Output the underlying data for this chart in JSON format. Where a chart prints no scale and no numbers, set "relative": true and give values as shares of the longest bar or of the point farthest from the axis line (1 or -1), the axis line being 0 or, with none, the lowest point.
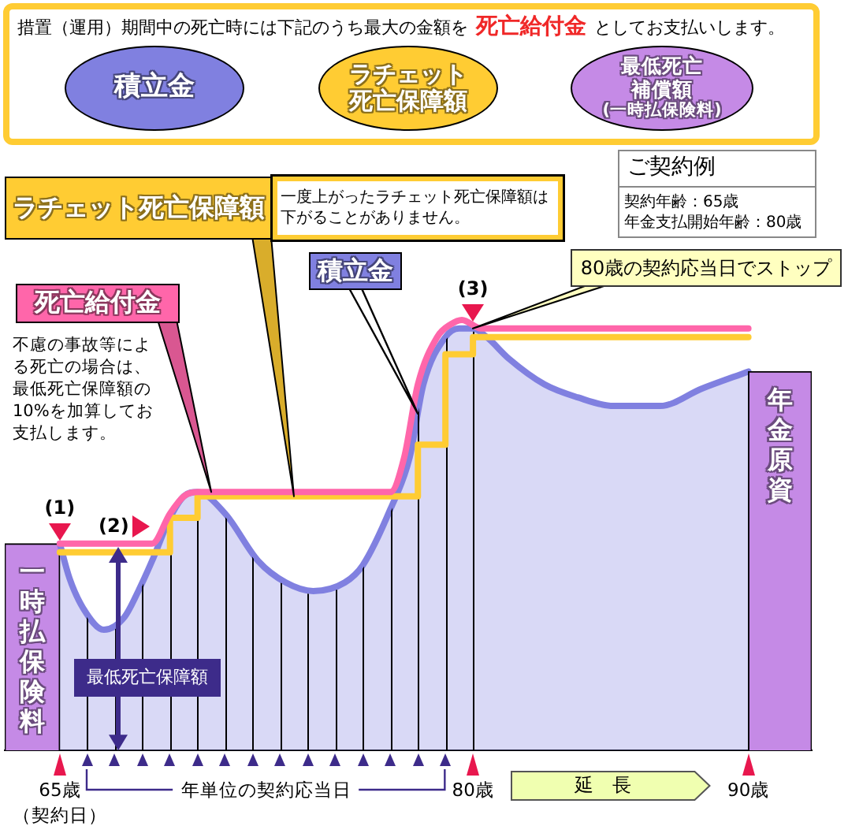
{
  "chart_data": {
    "type": "line",
    "relative": true,
    "annotations": [
      "措置（運用）期間中の死亡時には下記のうち最大の金額を",
      "死亡給付金",
      "としてお支払いします。",
      "積立金",
      "ラチェット死亡保障額",
      "最低死亡補償額",
      "(一時払保険料)",
      "一度上がったラチェット死亡保障額は下がることがありません。",
      "不慮の事故等による死亡の場合は、最低死亡保障額の10%を加算してお支払します。",
      "ご契約例",
      "契約年齢：65歳",
      "年金支払開始年齢：80歳",
      {
        "text": "(1)",
        "x": 65,
        "y": 0.48
      },
      {
        "text": "(2)",
        "x": 68.6,
        "y": 0.52
      },
      {
        "text": "(3)",
        "x": 80,
        "y": 0.99
      },
      {
        "text": "80歳の契約応当日でストップ",
        "x": 80,
        "y": 0.98
      },
      "最低死亡保障額",
      "年単位の契約応当日",
      "延　長",
      "（契約日）"
    ],
    "xlim": [
      63,
      92.3
    ],
    "xticks": [
      {
        "value": 65,
        "label": "65歳"
      },
      {
        "value": 66,
        "label": null
      },
      {
        "value": 67,
        "label": null
      },
      {
        "value": 68,
        "label": null
      },
      {
        "value": 69,
        "label": null
      },
      {
        "value": 70,
        "label": null
      },
      {
        "value": 71,
        "label": null
      },
      {
        "value": 72,
        "label": null
      },
      {
        "value": 73,
        "label": null
      },
      {
        "value": 74,
        "label": null
      },
      {
        "value": 75,
        "label": null
      },
      {
        "value": 76,
        "label": null
      },
      {
        "value": 77,
        "label": null
      },
      {
        "value": 78,
        "label": null
      },
      {
        "value": 79,
        "label": null
      },
      {
        "value": 80,
        "label": "80歳"
      },
      {
        "value": 90,
        "label": "90歳"
      }
    ],
    "series": [
      {
        "name": "一時払保険料",
        "type": "bar",
        "color": "#c58ae6",
        "x": [
          64
        ],
        "values": [
          0.48
        ]
      },
      {
        "name": "積立金",
        "type": "area",
        "color": "#8080e0",
        "x": [
          65,
          65.35,
          65.85,
          66.6,
          67.35,
          67.85,
          68.35,
          69,
          69.5,
          70,
          71,
          72.2,
          73.2,
          74.2,
          75.35,
          76,
          77,
          77.7,
          78.2,
          79,
          79.5,
          80,
          80.5,
          81.3,
          82.6,
          83.8,
          85.1,
          86.8,
          88.3,
          90
        ],
        "values": [
          0.48,
          0.4,
          0.33,
          0.28,
          0.31,
          0.37,
          0.44,
          0.54,
          0.59,
          0.6,
          0.55,
          0.44,
          0.39,
          0.37,
          0.39,
          0.43,
          0.56,
          0.68,
          0.85,
          0.96,
          0.98,
          0.98,
          0.96,
          0.91,
          0.85,
          0.82,
          0.8,
          0.8,
          0.84,
          0.88
        ]
      },
      {
        "name": "ラチェット死亡保障額",
        "type": "step",
        "color": "#ffcc33",
        "x": [
          65,
          69,
          70,
          78,
          79,
          80,
          90
        ],
        "values": [
          0.46,
          0.54,
          0.59,
          0.71,
          0.92,
          0.96,
          0.96
        ]
      },
      {
        "name": "死亡給付金",
        "type": "line",
        "color": "#ff66aa",
        "x": [
          65,
          68.35,
          69,
          69.5,
          70,
          77,
          77.5,
          78,
          78.7,
          79.2,
          79.6,
          80.3,
          90
        ],
        "values": [
          0.48,
          0.48,
          0.55,
          0.59,
          0.6,
          0.6,
          0.68,
          0.85,
          0.96,
          0.99,
          1,
          0.98,
          0.98
        ]
      },
      {
        "name": "年金原資",
        "type": "bar",
        "color": "#c58ae6",
        "x": [
          91.15
        ],
        "values": [
          0.88
        ]
      }
    ],
    "ref_lines": [
      {
        "axis": "x",
        "value": 66,
        "color": "#000000"
      },
      {
        "axis": "x",
        "value": 67,
        "color": "#000000"
      },
      {
        "axis": "x",
        "value": 68,
        "color": "#000000"
      },
      {
        "axis": "x",
        "value": 69,
        "color": "#000000"
      },
      {
        "axis": "x",
        "value": 70,
        "color": "#000000"
      },
      {
        "axis": "x",
        "value": 71,
        "color": "#000000"
      },
      {
        "axis": "x",
        "value": 72,
        "color": "#000000"
      },
      {
        "axis": "x",
        "value": 73,
        "color": "#000000"
      },
      {
        "axis": "x",
        "value": 74,
        "color": "#000000"
      },
      {
        "axis": "x",
        "value": 75,
        "color": "#000000"
      },
      {
        "axis": "x",
        "value": 76,
        "color": "#000000"
      },
      {
        "axis": "x",
        "value": 77,
        "color": "#000000"
      },
      {
        "axis": "x",
        "value": 78,
        "color": "#000000"
      },
      {
        "axis": "x",
        "value": 79,
        "color": "#000000"
      },
      {
        "axis": "x",
        "value": 80,
        "color": "#000000"
      }
    ],
    "legend": false,
    "grid": false,
    "marker": "none",
    "tick_labels": "x"
  }
}
